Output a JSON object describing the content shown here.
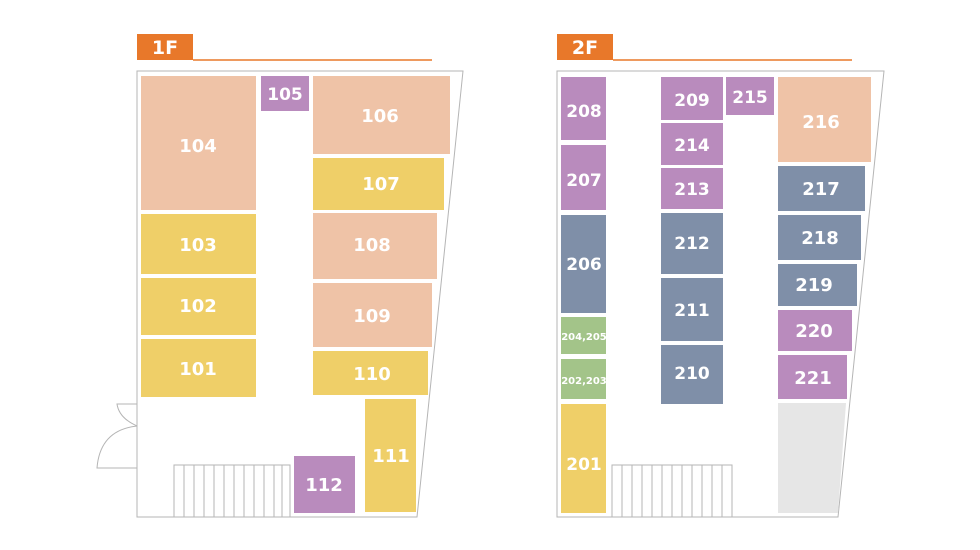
{
  "colors": {
    "salmon": "#efc3a7",
    "yellow": "#efcf68",
    "purple": "#b98bbd",
    "slate": "#7f8fa8",
    "green": "#a3c489",
    "gray": "#e6e6e6",
    "header": "#e8782a",
    "outline": "#b5b5b5"
  },
  "floors": [
    {
      "id": "1f",
      "label": "1F",
      "rooms": [
        {
          "id": "104",
          "label": "104",
          "color": "salmon"
        },
        {
          "id": "105",
          "label": "105",
          "color": "purple"
        },
        {
          "id": "106",
          "label": "106",
          "color": "salmon"
        },
        {
          "id": "107",
          "label": "107",
          "color": "yellow"
        },
        {
          "id": "103",
          "label": "103",
          "color": "yellow"
        },
        {
          "id": "108",
          "label": "108",
          "color": "salmon"
        },
        {
          "id": "102",
          "label": "102",
          "color": "yellow"
        },
        {
          "id": "109",
          "label": "109",
          "color": "salmon"
        },
        {
          "id": "101",
          "label": "101",
          "color": "yellow"
        },
        {
          "id": "110",
          "label": "110",
          "color": "yellow"
        },
        {
          "id": "111",
          "label": "111",
          "color": "yellow"
        },
        {
          "id": "112",
          "label": "112",
          "color": "purple"
        }
      ]
    },
    {
      "id": "2f",
      "label": "2F",
      "rooms": [
        {
          "id": "208",
          "label": "208",
          "color": "purple"
        },
        {
          "id": "209",
          "label": "209",
          "color": "purple"
        },
        {
          "id": "215",
          "label": "215",
          "color": "purple"
        },
        {
          "id": "216",
          "label": "216",
          "color": "salmon"
        },
        {
          "id": "214",
          "label": "214",
          "color": "purple"
        },
        {
          "id": "207",
          "label": "207",
          "color": "purple"
        },
        {
          "id": "213",
          "label": "213",
          "color": "purple"
        },
        {
          "id": "217",
          "label": "217",
          "color": "slate"
        },
        {
          "id": "212",
          "label": "212",
          "color": "slate"
        },
        {
          "id": "218",
          "label": "218",
          "color": "slate"
        },
        {
          "id": "206",
          "label": "206",
          "color": "slate"
        },
        {
          "id": "219",
          "label": "219",
          "color": "slate"
        },
        {
          "id": "211",
          "label": "211",
          "color": "slate"
        },
        {
          "id": "220",
          "label": "220",
          "color": "purple"
        },
        {
          "id": "204-205",
          "label": "204,205",
          "color": "green"
        },
        {
          "id": "210",
          "label": "210",
          "color": "slate"
        },
        {
          "id": "221",
          "label": "221",
          "color": "purple"
        },
        {
          "id": "202-203",
          "label": "202,203",
          "color": "green"
        },
        {
          "id": "201",
          "label": "201",
          "color": "yellow"
        },
        {
          "id": "blank",
          "label": "",
          "color": "gray"
        }
      ]
    }
  ]
}
